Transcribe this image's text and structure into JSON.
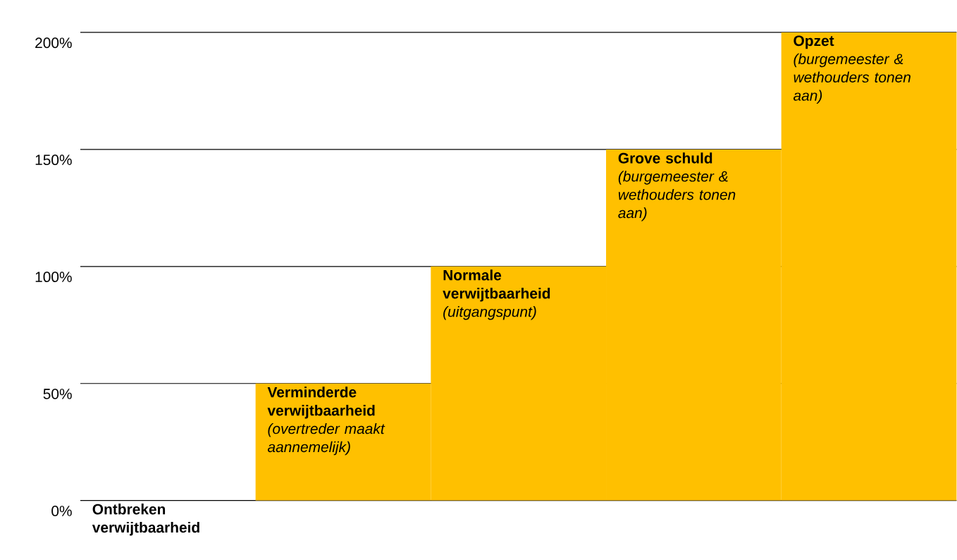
{
  "chart_data": {
    "type": "bar",
    "categories": [
      "Ontbreken verwijtbaarheid",
      "Verminderde verwijtbaarheid",
      "Normale verwijtbaarheid",
      "Grove schuld",
      "Opzet"
    ],
    "values": [
      0,
      50,
      100,
      150,
      200
    ],
    "color": "#ffc000",
    "ylim": [
      0,
      200
    ],
    "yticks": [
      {
        "value": 0,
        "label": "0%"
      },
      {
        "value": 50,
        "label": "50%"
      },
      {
        "value": 100,
        "label": "100%"
      },
      {
        "value": 150,
        "label": "150%"
      },
      {
        "value": 200,
        "label": "200%"
      }
    ],
    "grid": "y",
    "annotations": [
      {
        "text": "(overtreder maakt aannemelijk)",
        "x": "Verminderde verwijtbaarheid",
        "y": 50
      },
      {
        "text": "(uitgangspunt)",
        "x": "Normale verwijtbaarheid",
        "y": 100
      },
      {
        "text": "(burgemeester & wethouders tonen aan)",
        "x": "Grove schuld",
        "y": 150
      },
      {
        "text": "(burgemeester & wethouders tonen aan)",
        "x": "Opzet",
        "y": 200
      }
    ]
  }
}
